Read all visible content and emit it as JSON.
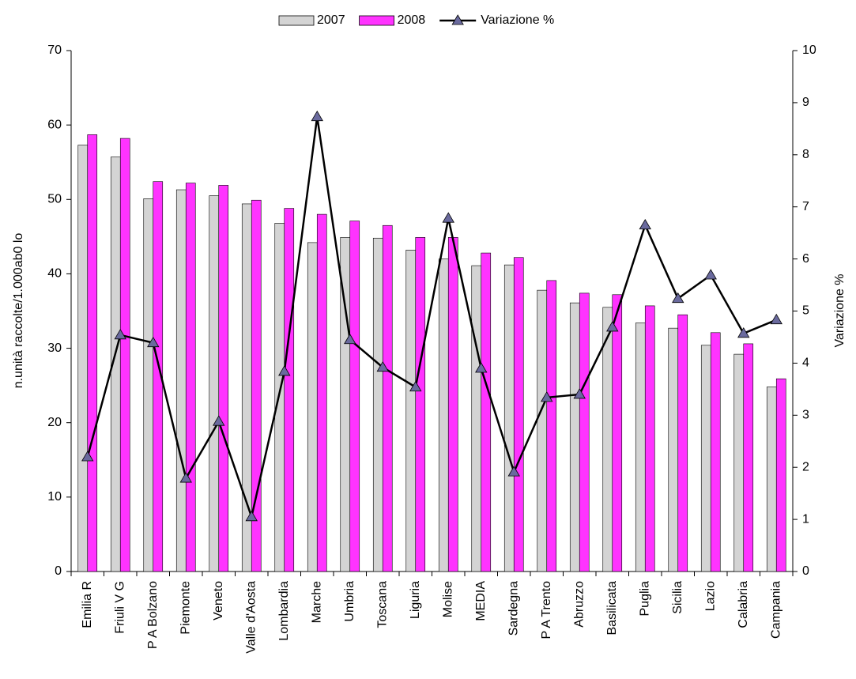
{
  "chart_data": {
    "type": "bar_line",
    "categories": [
      "Emilia R",
      "Friuli V G",
      "P A Bolzano",
      "Piemonte",
      "Veneto",
      "Valle d'Aosta",
      "Lombardia",
      "Marche",
      "Umbria",
      "Toscana",
      "Liguria",
      "Molise",
      "MEDIA",
      "Sardegna",
      "P A Trento",
      "Abruzzo",
      "Basilicata",
      "Puglia",
      "Sicilia",
      "Lazio",
      "Calabria",
      "Campania"
    ],
    "series": [
      {
        "name": "2007",
        "color": "#d4d4d4",
        "type": "bar",
        "values": [
          57.3,
          55.7,
          50.1,
          51.3,
          50.5,
          49.4,
          46.8,
          44.2,
          44.9,
          44.8,
          43.2,
          42.0,
          41.1,
          41.2,
          37.8,
          36.1,
          35.5,
          33.4,
          32.7,
          30.4,
          29.2,
          24.8
        ]
      },
      {
        "name": "2008",
        "color": "#ff33ff",
        "type": "bar",
        "values": [
          58.7,
          58.2,
          52.4,
          52.2,
          51.9,
          49.9,
          48.8,
          48.0,
          47.1,
          46.5,
          44.9,
          44.9,
          42.8,
          42.2,
          39.1,
          37.4,
          37.2,
          35.7,
          34.5,
          32.1,
          30.6,
          25.9
        ]
      },
      {
        "name": "Variazione %",
        "color": "#6a6a9e",
        "type": "line",
        "axis": "y2",
        "values": [
          2.2,
          4.54,
          4.39,
          1.79,
          2.88,
          1.05,
          3.84,
          8.73,
          4.45,
          3.92,
          3.54,
          6.78,
          3.9,
          1.91,
          3.34,
          3.4,
          4.69,
          6.65,
          5.24,
          5.69,
          4.57,
          4.83
        ]
      }
    ],
    "ylabel": "n.unità raccolte/1.000ab0 lo",
    "y2label": "Variazione %",
    "ylim": [
      0,
      70
    ],
    "yticks": [
      0,
      10,
      20,
      30,
      40,
      50,
      60,
      70
    ],
    "y2lim": [
      0,
      10
    ],
    "y2ticks": [
      0,
      1,
      2,
      3,
      4,
      5,
      6,
      7,
      8,
      9,
      10
    ],
    "legend": "top",
    "grid": false
  }
}
